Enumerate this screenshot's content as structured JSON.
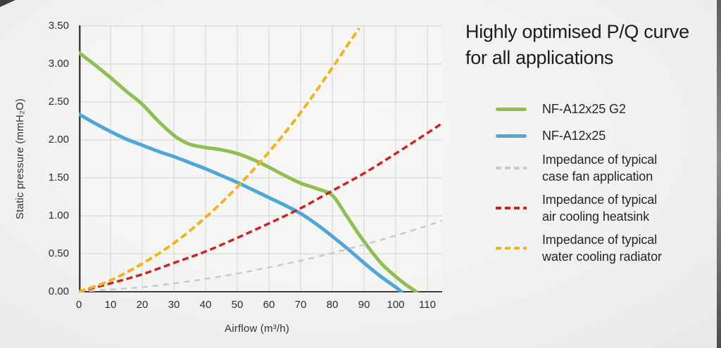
{
  "colors": {
    "green": "#8fbf52",
    "blue": "#4fa7d8",
    "gray": "#c9c9c7",
    "red": "#cd2327",
    "yellow": "#efb424",
    "axis": "#3e3e3e",
    "grid": "#d3d3d1"
  },
  "chart_data": {
    "type": "line",
    "title": "Highly optimised P/Q curve for all applications",
    "xlabel": "Airflow (m³/h)",
    "ylabel": "Static pressure (mmH₂O)",
    "xlim": [
      0,
      114.7
    ],
    "ylim": [
      0,
      3.5
    ],
    "grid": true,
    "legend_position": "right",
    "x_tick_labels": [
      "0",
      "10",
      "20",
      "30",
      "40",
      "50",
      "60",
      "70",
      "80",
      "90",
      "100",
      "110"
    ],
    "y_tick_labels": [
      "0.00",
      "0.50",
      "1.00",
      "1.50",
      "2.00",
      "2.50",
      "3.00",
      "3.50"
    ],
    "series": [
      {
        "name": "NF-A12x25 G2",
        "color_key": "green",
        "color": "#8fbf52",
        "style": "solid",
        "points": [
          [
            0,
            3.15
          ],
          [
            5,
            2.99
          ],
          [
            10,
            2.82
          ],
          [
            15,
            2.64
          ],
          [
            20,
            2.47
          ],
          [
            25,
            2.25
          ],
          [
            30,
            2.06
          ],
          [
            33,
            1.98
          ],
          [
            36,
            1.93
          ],
          [
            40,
            1.9
          ],
          [
            45,
            1.87
          ],
          [
            50,
            1.82
          ],
          [
            55,
            1.74
          ],
          [
            60,
            1.64
          ],
          [
            65,
            1.53
          ],
          [
            70,
            1.43
          ],
          [
            75,
            1.36
          ],
          [
            80,
            1.27
          ],
          [
            84,
            1.03
          ],
          [
            88,
            0.78
          ],
          [
            92,
            0.55
          ],
          [
            96,
            0.35
          ],
          [
            100,
            0.2
          ],
          [
            103,
            0.1
          ],
          [
            106.5,
            0
          ]
        ]
      },
      {
        "name": "NF-A12x25",
        "color_key": "blue",
        "color": "#4fa7d8",
        "style": "solid",
        "points": [
          [
            0,
            2.34
          ],
          [
            5,
            2.22
          ],
          [
            10,
            2.11
          ],
          [
            15,
            2.01
          ],
          [
            20,
            1.93
          ],
          [
            25,
            1.85
          ],
          [
            30,
            1.78
          ],
          [
            35,
            1.7
          ],
          [
            40,
            1.62
          ],
          [
            45,
            1.53
          ],
          [
            50,
            1.44
          ],
          [
            55,
            1.34
          ],
          [
            60,
            1.24
          ],
          [
            65,
            1.14
          ],
          [
            70,
            1.03
          ],
          [
            75,
            0.89
          ],
          [
            80,
            0.73
          ],
          [
            85,
            0.56
          ],
          [
            90,
            0.38
          ],
          [
            95,
            0.21
          ],
          [
            100,
            0.06
          ],
          [
            101.8,
            0
          ]
        ]
      },
      {
        "name": "Impedance of typical case fan application",
        "color_key": "gray",
        "color": "#c9c9c7",
        "style": "dashed",
        "points": [
          [
            0,
            0
          ],
          [
            10,
            0.03
          ],
          [
            20,
            0.06
          ],
          [
            30,
            0.11
          ],
          [
            40,
            0.17
          ],
          [
            50,
            0.24
          ],
          [
            60,
            0.32
          ],
          [
            70,
            0.41
          ],
          [
            80,
            0.51
          ],
          [
            90,
            0.62
          ],
          [
            100,
            0.74
          ],
          [
            110,
            0.87
          ],
          [
            114.7,
            0.94
          ]
        ]
      },
      {
        "name": "Impedance of typical air cooling heatsink",
        "color_key": "red",
        "color": "#cd2327",
        "style": "dashed",
        "points": [
          [
            0,
            0
          ],
          [
            10,
            0.11
          ],
          [
            20,
            0.23
          ],
          [
            30,
            0.38
          ],
          [
            40,
            0.53
          ],
          [
            50,
            0.71
          ],
          [
            60,
            0.9
          ],
          [
            70,
            1.1
          ],
          [
            80,
            1.33
          ],
          [
            90,
            1.56
          ],
          [
            100,
            1.82
          ],
          [
            110,
            2.09
          ],
          [
            114.7,
            2.22
          ]
        ]
      },
      {
        "name": "Impedance of typical water cooling radiator",
        "color_key": "yellow",
        "color": "#efb424",
        "style": "dashed",
        "points": [
          [
            0,
            0
          ],
          [
            10,
            0.15
          ],
          [
            20,
            0.37
          ],
          [
            30,
            0.64
          ],
          [
            40,
            0.98
          ],
          [
            50,
            1.38
          ],
          [
            60,
            1.84
          ],
          [
            70,
            2.36
          ],
          [
            80,
            2.95
          ],
          [
            85,
            3.26
          ],
          [
            88.5,
            3.47
          ]
        ]
      }
    ]
  },
  "panel": {
    "title_lines": [
      "Highly optimised P/Q curve",
      "for all applications"
    ],
    "legend": [
      {
        "label_lines": [
          "NF-A12x25 G2"
        ],
        "color_key": "green",
        "style": "solid"
      },
      {
        "label_lines": [
          "NF-A12x25"
        ],
        "color_key": "blue",
        "style": "solid"
      },
      {
        "label_lines": [
          "Impedance of typical",
          "case fan application"
        ],
        "color_key": "gray",
        "style": "dashed"
      },
      {
        "label_lines": [
          "Impedance of typical",
          "air cooling heatsink"
        ],
        "color_key": "red",
        "style": "dashed"
      },
      {
        "label_lines": [
          "Impedance of typical",
          "water cooling radiator"
        ],
        "color_key": "yellow",
        "style": "dashed"
      }
    ]
  }
}
